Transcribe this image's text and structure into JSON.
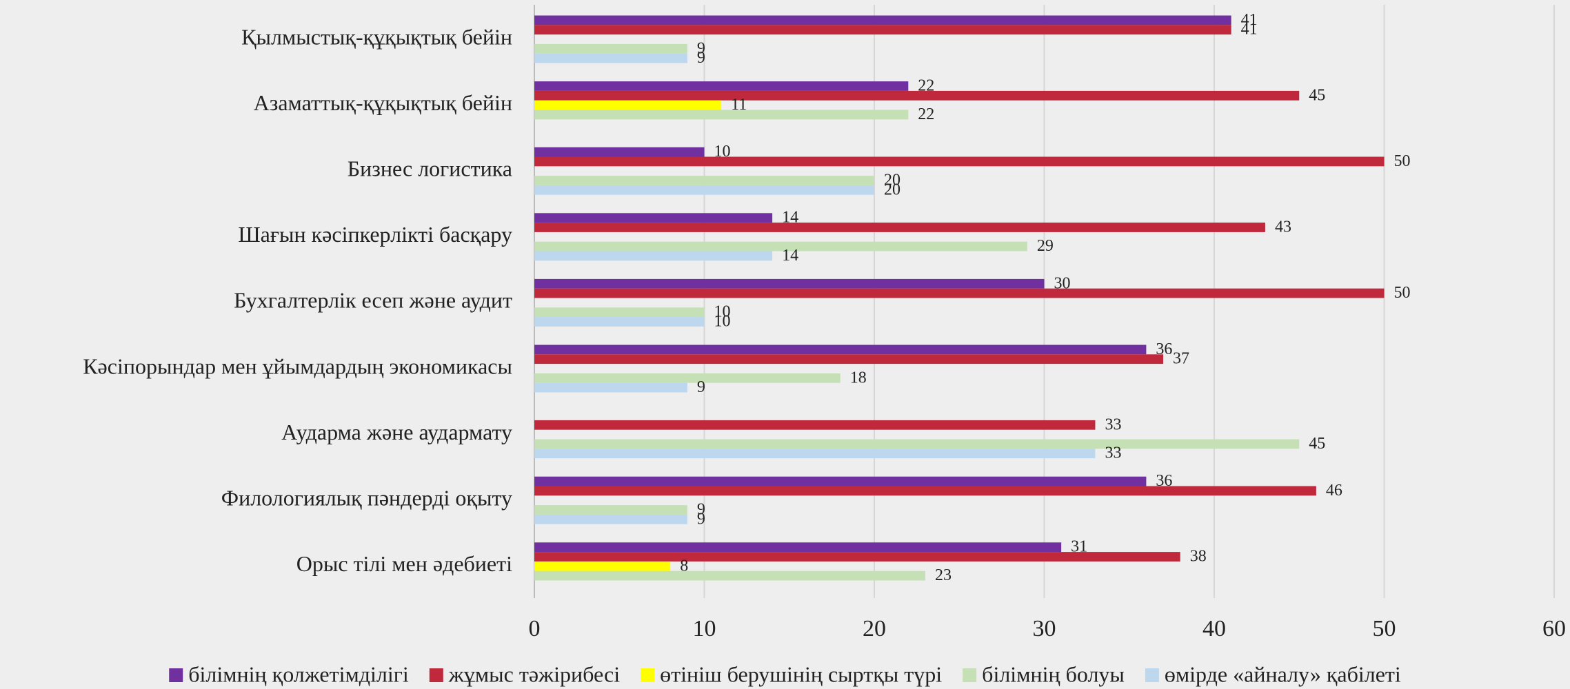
{
  "chart_data": {
    "type": "bar",
    "orientation": "horizontal",
    "categories": [
      "Қылмыстық-құқықтық бейін",
      "Азаматтық-құқықтық бейін",
      "Бизнес логистика",
      "Шағын кәсіпкерлікті басқару",
      "Бухгалтерлік есеп және аудит",
      "Кәсіпорындар мен ұйымдардың экономикасы",
      "Аударма және аудармату",
      "Филологиялық пәндерді оқыту",
      "Орыс тілі мен әдебиеті"
    ],
    "series": [
      {
        "name": "білімнің қолжетімділігі",
        "color": "#7030a0",
        "values": [
          41,
          22,
          10,
          14,
          30,
          36,
          null,
          36,
          31
        ]
      },
      {
        "name": "жұмыс тәжірибесі",
        "color": "#c0283c",
        "values": [
          41,
          45,
          50,
          43,
          50,
          37,
          33,
          46,
          38
        ]
      },
      {
        "name": "өтініш берушінің сыртқы түрі",
        "color": "#ffff00",
        "values": [
          null,
          11,
          null,
          null,
          null,
          null,
          null,
          null,
          8
        ]
      },
      {
        "name": "білімнің болуы",
        "color": "#c5e0b4",
        "values": [
          9,
          22,
          20,
          29,
          10,
          18,
          45,
          9,
          23
        ]
      },
      {
        "name": "өмірде «айналу» қабілеті",
        "color": "#bdd7ee",
        "values": [
          9,
          null,
          20,
          14,
          10,
          9,
          33,
          9,
          null
        ]
      }
    ],
    "xlim": [
      0,
      60
    ],
    "xticks": [
      0,
      10,
      20,
      30,
      40,
      50,
      60
    ],
    "grid": true,
    "legend": "bottom"
  }
}
